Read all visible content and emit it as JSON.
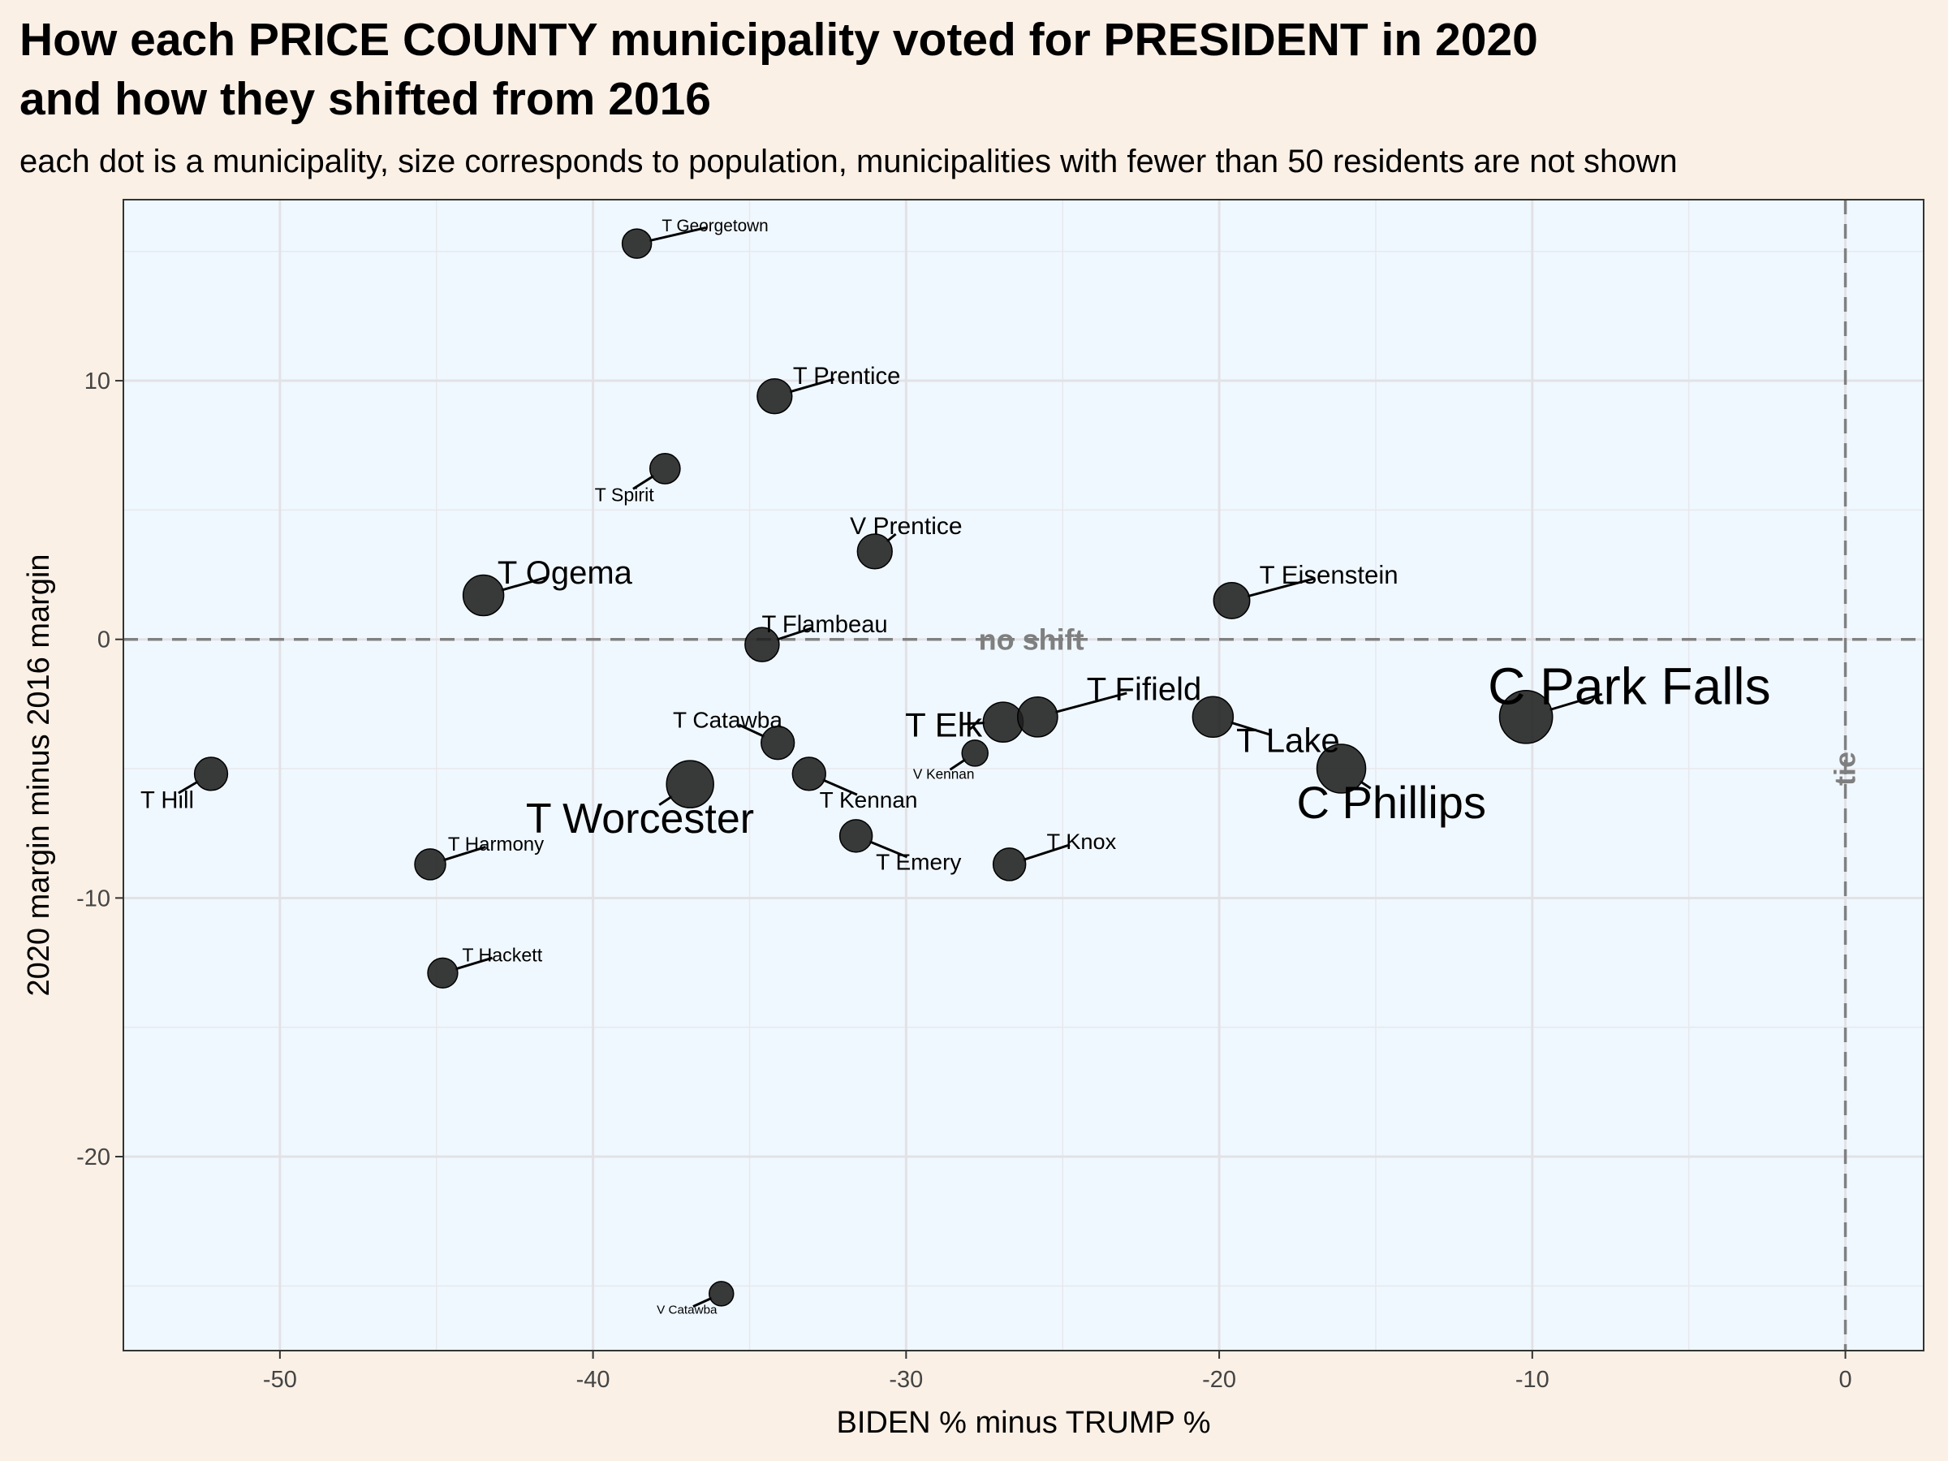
{
  "chart_data": {
    "type": "scatter",
    "title_line1": "How each PRICE COUNTY municipality voted for PRESIDENT in 2020",
    "title_line2": "and how they shifted from 2016",
    "subtitle": "each dot is a municipality, size corresponds to population, municipalities with fewer than 50 residents are not shown",
    "xlabel": "BIDEN % minus TRUMP %",
    "ylabel": "2020 margin minus 2016 margin",
    "xlim": [
      -55,
      2.5
    ],
    "ylim": [
      -27.5,
      17.0
    ],
    "x_ticks": [
      -50,
      -40,
      -30,
      -20,
      -10,
      0
    ],
    "y_ticks": [
      -20,
      -10,
      0,
      10
    ],
    "grid": true,
    "reference_lines": {
      "hline": {
        "y": 0,
        "label": "no shift"
      },
      "vline": {
        "x": 0,
        "label": "tie"
      }
    },
    "points": [
      {
        "name": "T Georgetown",
        "x": -38.6,
        "y": 15.3,
        "size": 0.45,
        "label": {
          "x": -36.1,
          "y": 16.0,
          "fs": 0.52
        }
      },
      {
        "name": "T Prentice",
        "x": -34.2,
        "y": 9.4,
        "size": 0.62,
        "label": {
          "x": -31.9,
          "y": 10.2,
          "fs": 0.73
        }
      },
      {
        "name": "T Spirit",
        "x": -37.7,
        "y": 6.6,
        "size": 0.48,
        "label": {
          "x": -39.0,
          "y": 5.6,
          "fs": 0.58
        }
      },
      {
        "name": "V Prentice",
        "x": -31.0,
        "y": 3.4,
        "size": 0.62,
        "label": {
          "x": -30.0,
          "y": 4.4,
          "fs": 0.75
        }
      },
      {
        "name": "T Ogema",
        "x": -43.5,
        "y": 1.7,
        "size": 0.8,
        "label": {
          "x": -40.9,
          "y": 2.6,
          "fs": 1.0
        }
      },
      {
        "name": "T Flambeau",
        "x": -34.6,
        "y": -0.2,
        "size": 0.6,
        "label": {
          "x": -32.6,
          "y": 0.6,
          "fs": 0.73
        }
      },
      {
        "name": "T Eisenstein",
        "x": -19.6,
        "y": 1.5,
        "size": 0.66,
        "label": {
          "x": -16.5,
          "y": 2.5,
          "fs": 0.78
        }
      },
      {
        "name": "T Catawba",
        "x": -34.1,
        "y": -4.0,
        "size": 0.57,
        "label": {
          "x": -35.7,
          "y": -3.1,
          "fs": 0.7
        }
      },
      {
        "name": "T Worcester",
        "x": -36.9,
        "y": -5.6,
        "size": 1.0,
        "label": {
          "x": -38.5,
          "y": -6.9,
          "fs": 1.3
        }
      },
      {
        "name": "T Kennan",
        "x": -33.1,
        "y": -5.2,
        "size": 0.57,
        "label": {
          "x": -31.2,
          "y": -6.2,
          "fs": 0.7
        }
      },
      {
        "name": "T Emery",
        "x": -31.6,
        "y": -7.6,
        "size": 0.55,
        "label": {
          "x": -29.6,
          "y": -8.6,
          "fs": 0.7
        }
      },
      {
        "name": "T Elk",
        "x": -26.9,
        "y": -3.2,
        "size": 0.78,
        "label": {
          "x": -28.8,
          "y": -3.3,
          "fs": 1.05
        }
      },
      {
        "name": "T Fifield",
        "x": -25.8,
        "y": -3.0,
        "size": 0.78,
        "label": {
          "x": -22.4,
          "y": -1.9,
          "fs": 1.0
        }
      },
      {
        "name": "V Kennan",
        "x": -27.8,
        "y": -4.4,
        "size": 0.35,
        "label": {
          "x": -28.8,
          "y": -5.2,
          "fs": 0.43
        }
      },
      {
        "name": "T Knox",
        "x": -26.7,
        "y": -8.7,
        "size": 0.55,
        "label": {
          "x": -24.4,
          "y": -7.8,
          "fs": 0.68
        }
      },
      {
        "name": "T Lake",
        "x": -20.2,
        "y": -3.0,
        "size": 0.8,
        "label": {
          "x": -17.8,
          "y": -3.9,
          "fs": 1.05
        }
      },
      {
        "name": "C Park Falls",
        "x": -10.2,
        "y": -3.0,
        "size": 1.18,
        "label": {
          "x": -6.9,
          "y": -1.8,
          "fs": 1.6
        }
      },
      {
        "name": "C Phillips",
        "x": -16.1,
        "y": -5.0,
        "size": 1.05,
        "label": {
          "x": -14.5,
          "y": -6.3,
          "fs": 1.4
        }
      },
      {
        "name": "T Hill",
        "x": -52.2,
        "y": -5.2,
        "size": 0.57,
        "label": {
          "x": -53.6,
          "y": -6.2,
          "fs": 0.73
        }
      },
      {
        "name": "T Harmony",
        "x": -45.2,
        "y": -8.7,
        "size": 0.5,
        "label": {
          "x": -43.1,
          "y": -7.9,
          "fs": 0.6
        }
      },
      {
        "name": "T Hackett",
        "x": -44.8,
        "y": -12.9,
        "size": 0.47,
        "label": {
          "x": -42.9,
          "y": -12.2,
          "fs": 0.58
        }
      },
      {
        "name": "V Catawba",
        "x": -35.9,
        "y": -25.3,
        "size": 0.3,
        "label": {
          "x": -37.0,
          "y": -25.9,
          "fs": 0.38
        }
      }
    ]
  }
}
